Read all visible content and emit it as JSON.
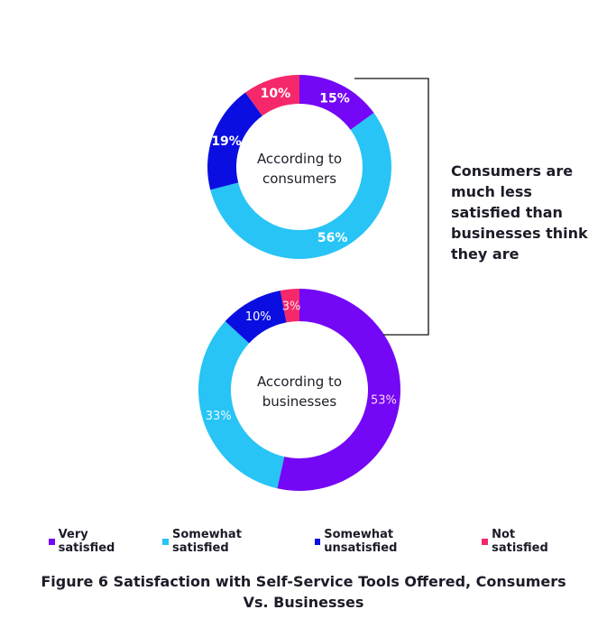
{
  "colors": {
    "very_satisfied": "#7407f5",
    "somewhat_satisfied": "#27c4f5",
    "somewhat_unsatisfied": "#0a0ee0",
    "not_satisfied": "#f5286a"
  },
  "callout": {
    "text": "Consumers are much less satisfied than businesses think they are"
  },
  "legend": {
    "items": [
      {
        "label": "Very satisfied",
        "color": "#7407f5"
      },
      {
        "label": "Somewhat satisfied",
        "color": "#27c4f5"
      },
      {
        "label": "Somewhat unsatisfied",
        "color": "#0a0ee0"
      },
      {
        "label": "Not satisfied",
        "color": "#f5286a"
      }
    ]
  },
  "caption": {
    "line1": "Figure 6 Satisfaction with Self-Service Tools Offered, Consumers",
    "line2": "Vs. Businesses"
  },
  "chart_data": [
    {
      "type": "pie",
      "variant": "donut",
      "title": "According to consumers",
      "center_label_lines": [
        "According to",
        "consumers"
      ],
      "categories": [
        "Very satisfied",
        "Somewhat satisfied",
        "Somewhat unsatisfied",
        "Not satisfied"
      ],
      "values": [
        15,
        56,
        19,
        10
      ],
      "labels": [
        "15%",
        "56%",
        "19%",
        "10%"
      ],
      "colors": [
        "#7407f5",
        "#27c4f5",
        "#0a0ee0",
        "#f5286a"
      ]
    },
    {
      "type": "pie",
      "variant": "donut",
      "title": "According to businesses",
      "center_label_lines": [
        "According to",
        "businesses"
      ],
      "categories": [
        "Very satisfied",
        "Somewhat satisfied",
        "Somewhat unsatisfied",
        "Not satisfied"
      ],
      "values": [
        53,
        33,
        10,
        3
      ],
      "labels": [
        "53%",
        "33%",
        "10%",
        "3%"
      ],
      "colors": [
        "#7407f5",
        "#27c4f5",
        "#0a0ee0",
        "#f5286a"
      ]
    }
  ]
}
